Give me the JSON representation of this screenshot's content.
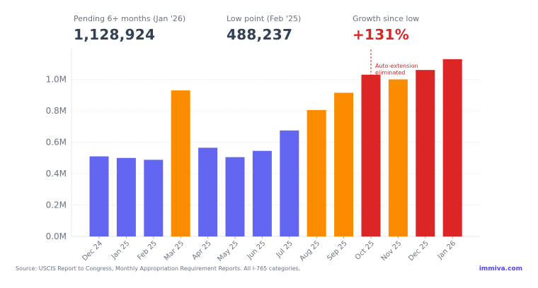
{
  "stats": [
    {
      "label": "Pending 6+ months (Jan '26)",
      "value": "1,128,924"
    },
    {
      "label": "Low point (Feb '25)",
      "value": "488,237"
    },
    {
      "label": "Growth since low",
      "value": "+131%"
    }
  ],
  "colors": {
    "blue": "#6366f1",
    "orange": "#fb8c00",
    "red": "#dc2626",
    "axis_text": "#6b7280",
    "grid": "#e5e7eb",
    "annotation": "#dc2626"
  },
  "chart_data": {
    "type": "bar",
    "categories": [
      "Dec 24",
      "Jan 25",
      "Feb 25",
      "Mar 25",
      "Apr 25",
      "May 25",
      "Jun 25",
      "Jul 25",
      "Aug 25",
      "Sep 25",
      "Oct 25",
      "Nov 25",
      "Dec 25",
      "Jan 26"
    ],
    "values": [
      0.51,
      0.5,
      0.488237,
      0.93,
      0.565,
      0.505,
      0.545,
      0.675,
      0.805,
      0.915,
      1.03,
      1.0,
      1.06,
      1.128924
    ],
    "color_groups": [
      "blue",
      "blue",
      "blue",
      "orange",
      "blue",
      "blue",
      "blue",
      "blue",
      "orange",
      "orange",
      "red",
      "orange",
      "red",
      "red"
    ],
    "yticks": [
      "0.0M",
      "0.2M",
      "0.4M",
      "0.6M",
      "0.8M",
      "1.0M"
    ],
    "ytick_values": [
      0,
      0.2,
      0.4,
      0.6,
      0.8,
      1.0
    ],
    "ylim": [
      0,
      1.2
    ],
    "ylabel": "",
    "xlabel": "",
    "unit": "M",
    "annotation": {
      "category": "Oct 25",
      "lines": [
        "Auto-extension",
        "eliminated"
      ]
    }
  },
  "footer": {
    "source": "Source: USCIS Report to Congress, Monthly Appropriation Requirement Reports. All I-765 categories.",
    "brand": "immiva.com"
  }
}
